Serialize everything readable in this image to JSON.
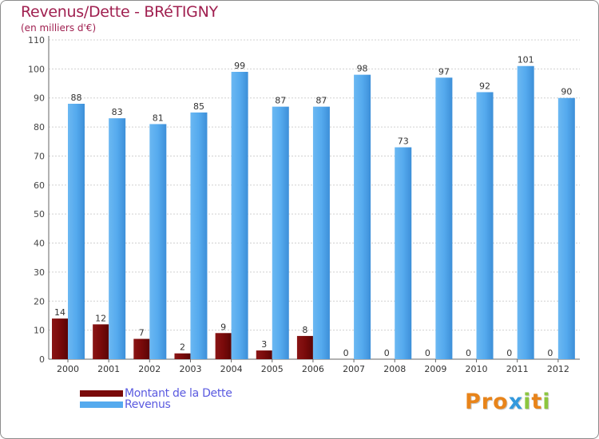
{
  "header": {
    "title": "Revenus/Dette - BRéTIGNY",
    "subtitle": "(en milliers d'€)"
  },
  "legend": {
    "debt_label": "Montant de la Dette",
    "revenue_label": "Revenus"
  },
  "logo": {
    "letters": [
      "P",
      "r",
      "o",
      "x",
      "i",
      "t",
      "i"
    ],
    "colors": [
      "#e8841a",
      "#e8841a",
      "#e8841a",
      "#3399dd",
      "#8cc63f",
      "#e8841a",
      "#8cc63f"
    ]
  },
  "colors": {
    "debt": "#7a0a0a",
    "revenue": "#55aaee",
    "title": "#a02050",
    "legend_text": "#5a5ae0"
  },
  "chart_data": {
    "type": "bar",
    "title": "Revenus/Dette - BRéTIGNY",
    "ylabel": "(en milliers d'€)",
    "xlabel": "",
    "categories": [
      "2000",
      "2001",
      "2002",
      "2003",
      "2004",
      "2005",
      "2006",
      "2007",
      "2008",
      "2009",
      "2010",
      "2011",
      "2012"
    ],
    "series": [
      {
        "name": "Montant de la Dette",
        "values": [
          14,
          12,
          7,
          2,
          9,
          3,
          8,
          0,
          0,
          0,
          0,
          0,
          0
        ]
      },
      {
        "name": "Revenus",
        "values": [
          88,
          83,
          81,
          85,
          99,
          87,
          87,
          98,
          73,
          97,
          92,
          101,
          90
        ]
      }
    ],
    "ylim": [
      0,
      110
    ],
    "yticks": [
      0,
      10,
      20,
      30,
      40,
      50,
      60,
      70,
      80,
      90,
      100,
      110
    ],
    "grid": true,
    "legend_position": "bottom-left"
  }
}
